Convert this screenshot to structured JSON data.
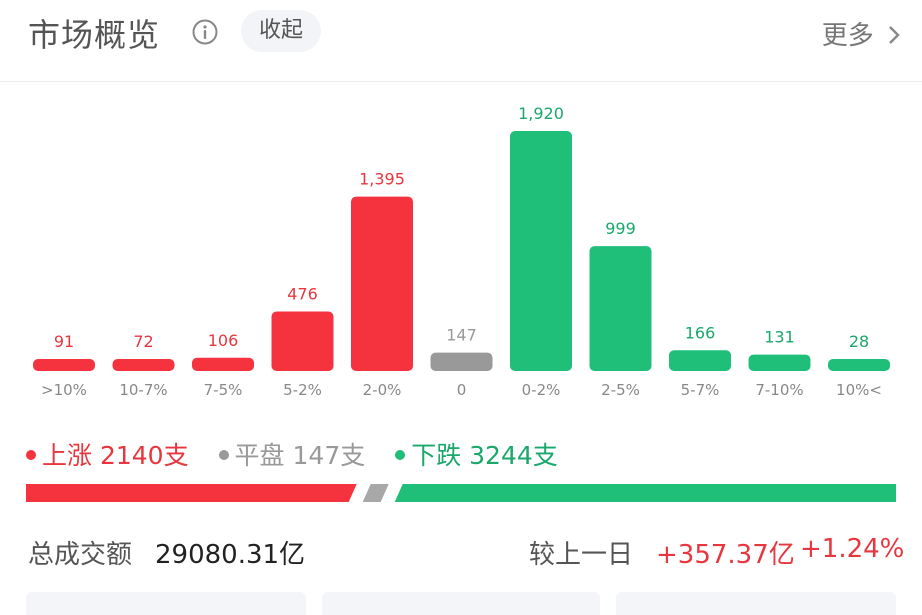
{
  "header": {
    "title": "市场概览",
    "collapse_label": "收起",
    "more_label": "更多"
  },
  "colors": {
    "up": "#f5333f",
    "flat": "#999999",
    "down": "#1fbf7a",
    "up_text": "#e8363f",
    "down_text": "#1aa86b"
  },
  "chart_data": {
    "type": "bar",
    "categories": [
      ">10%",
      "10-7%",
      "7-5%",
      "5-2%",
      "2-0%",
      "0",
      "0-2%",
      "2-5%",
      "5-7%",
      "7-10%",
      "10%<"
    ],
    "values": [
      91,
      72,
      106,
      476,
      1395,
      147,
      1920,
      999,
      166,
      131,
      28
    ],
    "value_labels": [
      "91",
      "72",
      "106",
      "476",
      "1,395",
      "147",
      "1,920",
      "999",
      "166",
      "131",
      "28"
    ],
    "bar_groups": [
      "up",
      "up",
      "up",
      "up",
      "up",
      "flat",
      "down",
      "down",
      "down",
      "down",
      "down"
    ],
    "title": "",
    "xlabel": "",
    "ylabel": ""
  },
  "legend": {
    "up": {
      "label": "上涨",
      "value": "2140支"
    },
    "flat": {
      "label": "平盘",
      "value": "147支"
    },
    "down": {
      "label": "下跌",
      "value": "3244支"
    }
  },
  "distribution": {
    "up": 2140,
    "flat": 147,
    "down": 3244
  },
  "summary": {
    "turnover_label": "总成交额",
    "turnover_value": "29080.31亿",
    "compare_label": "较上一日",
    "compare_amount": "+357.37亿",
    "compare_pct": "+1.24%"
  }
}
